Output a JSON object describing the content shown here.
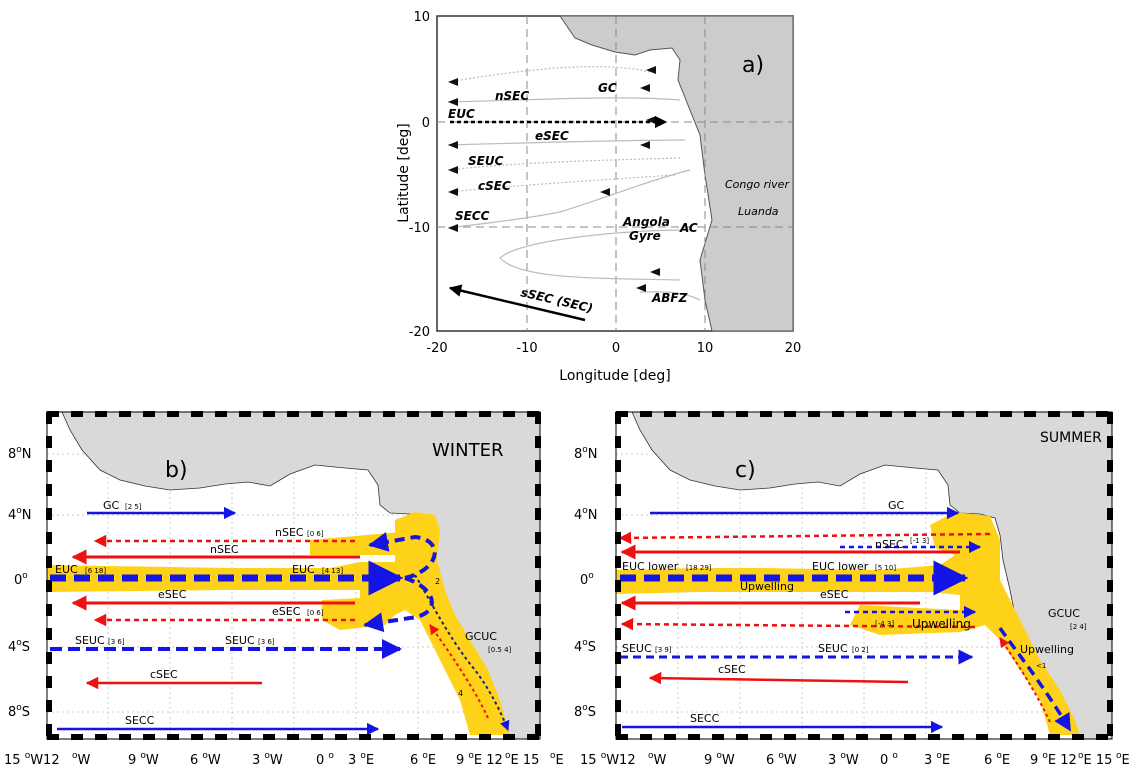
{
  "panel_a": {
    "label": "a)",
    "xlabel": "Longitude [deg]",
    "ylabel": "Latitude [deg]",
    "xticks": [
      "-20",
      "-10",
      "0",
      "10",
      "20"
    ],
    "yticks": [
      "10",
      "0",
      "-10",
      "-20"
    ],
    "currents": {
      "gc": "GC",
      "nsec": "nSEC",
      "euc": "EUC",
      "esec": "eSEC",
      "seuc": "SEUC",
      "csec": "cSEC",
      "secc": "SECC",
      "angola": "Angola",
      "gyre": "Gyre",
      "ac": "AC",
      "abfz": "ABFZ",
      "ssec": "sSEC (SEC)",
      "congo": "Congo river",
      "luanda": "Luanda"
    }
  },
  "panel_b": {
    "label": "b)",
    "season": "WINTER",
    "labels": {
      "gc": "GC",
      "gc_r": "[2 5]",
      "nsec_top": "nSEC",
      "nsec_top_r": "[0 6]",
      "nsec": "nSEC",
      "euc_w": "EUC",
      "euc_w_r": "[6 18]",
      "euc_e": "EUC",
      "euc_e_r": "[4 13]",
      "esec": "eSEC",
      "esec_b": "eSEC",
      "esec_b_r": "[0 6]",
      "seuc_w": "SEUC",
      "seuc_w_r": "[3 6]",
      "seuc_e": "SEUC",
      "seuc_e_r": "[3 6]",
      "csec": "cSEC",
      "secc": "SECC",
      "gcuc": "GCUC",
      "gcuc_r": "[0.5 4]",
      "num2": "2",
      "num4": "4"
    }
  },
  "panel_c": {
    "label": "c)",
    "season": "SUMMER",
    "labels": {
      "gc": "GC",
      "nsec": "nSEC",
      "nsec_r": "[-1 3]",
      "euc_w": "EUC lower",
      "euc_w_r": "[18 29]",
      "euc_e": "EUC lower",
      "euc_e_r": "[5 10]",
      "upw1": "Upwelling",
      "esec": "eSEC",
      "r43": "[-4 3]",
      "upw2": "Upwelling",
      "gcuc": "GCUC",
      "gcuc_r": "[2 4]",
      "upw3": "Upwelling",
      "lt1": "<1",
      "seuc_w": "SEUC",
      "seuc_w_r": "[3 9]",
      "seuc_e": "SEUC",
      "seuc_e_r": "[0 2]",
      "csec": "cSEC",
      "secc": "SECC"
    }
  },
  "bottom_axis": {
    "lat_ticks": [
      "8",
      "4",
      "0",
      "4",
      "8"
    ],
    "lat_hemi": [
      "N",
      "N",
      "",
      "S",
      "S"
    ],
    "lon_b": [
      {
        "pre": "15 ",
        "deg": "o",
        "post": "W12"
      },
      {
        "pre": " ",
        "deg": "o",
        "post": "W"
      },
      {
        "pre": "9 ",
        "deg": "o",
        "post": "W"
      },
      {
        "pre": "6 ",
        "deg": "o",
        "post": "W"
      },
      {
        "pre": "3 ",
        "deg": "o",
        "post": "W"
      },
      {
        "pre": "0 ",
        "deg": "o",
        "post": ""
      },
      {
        "pre": "3 ",
        "deg": "o",
        "post": "E"
      },
      {
        "pre": "6 ",
        "deg": "o",
        "post": "E"
      },
      {
        "pre": "9 ",
        "deg": "o",
        "post": "E 12"
      },
      {
        "pre": " ",
        "deg": "o",
        "post": "E 15"
      },
      {
        "pre": " ",
        "deg": "o",
        "post": "E"
      }
    ]
  },
  "colors": {
    "blue": "#1414e6",
    "red": "#ee1111",
    "yellow": "#ffd21a",
    "land": "#d9d9d9",
    "landA": "#cccccc"
  }
}
